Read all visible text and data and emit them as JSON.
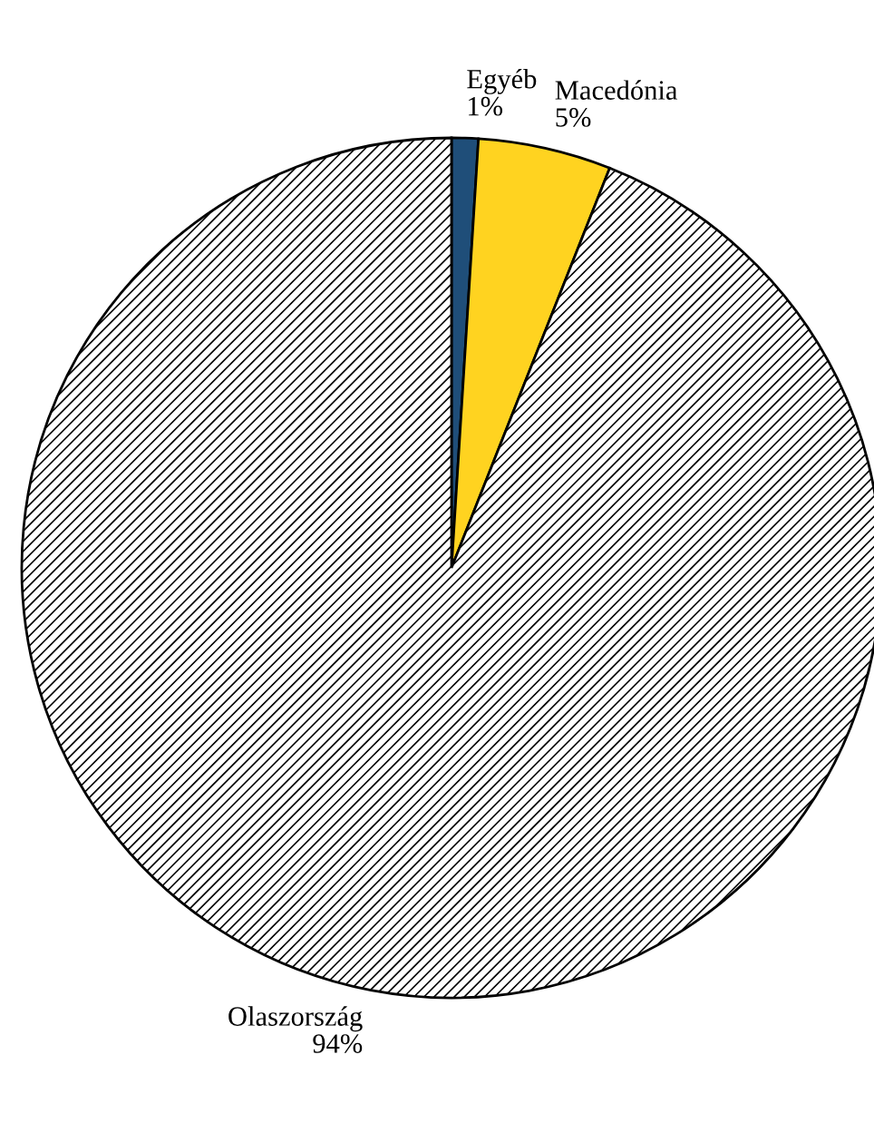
{
  "chart_data": {
    "type": "pie",
    "categories": [
      "Egyéb",
      "Macedónia",
      "Olaszország"
    ],
    "values": [
      1,
      5,
      94
    ],
    "colors": [
      "#1f4e79",
      "#ffd320",
      "#ffffff"
    ],
    "value_labels": [
      "1%",
      "5%",
      "94%"
    ],
    "legend": false
  }
}
